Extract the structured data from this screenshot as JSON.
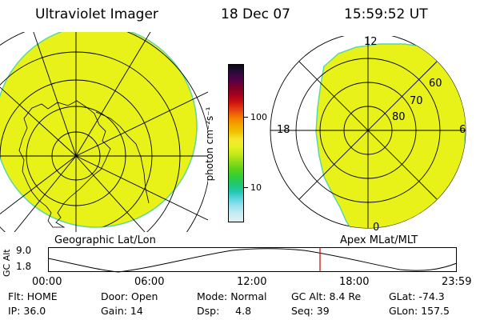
{
  "header": {
    "instrument": "Ultraviolet Imager",
    "date": "18 Dec 07",
    "time": "15:59:52 UT"
  },
  "colors": {
    "image_fill": "#e8f219",
    "image_edge": "#5dd6a0",
    "grid_line": "#000000",
    "time_marker": "#cc0000"
  },
  "left_map": {
    "label": "Geographic Lat/Lon"
  },
  "right_map": {
    "label": "Apex MLat/MLT",
    "mlt_labels": [
      "12",
      "18",
      "6",
      "0"
    ],
    "lat_labels": [
      "60",
      "70",
      "80"
    ]
  },
  "colorbar": {
    "unit_label": "photon cm⁻²s⁻¹",
    "tick_labels": [
      "100",
      "10"
    ],
    "palette": [
      "#0a0a14",
      "#2a0a3a",
      "#52004a",
      "#7a0028",
      "#a30020",
      "#cc1010",
      "#e84010",
      "#f07a00",
      "#f5a300",
      "#f0c200",
      "#f5e830",
      "#e6f020",
      "#c2e81a",
      "#8fdc1a",
      "#5ad21a",
      "#2ecf3a",
      "#20c870",
      "#22c8b0",
      "#5ed6e0",
      "#9ee2ef",
      "#c8ecf4",
      "#e4eef2"
    ]
  },
  "alt_plot": {
    "ylabel": "GC Alt",
    "y_ticks": [
      "9.0",
      "1.8"
    ],
    "x_ticks": [
      "00:00",
      "06:00",
      "12:00",
      "18:00",
      "23:59"
    ]
  },
  "info": {
    "flt": "Flt: HOME",
    "ip": "IP: 36.0",
    "door": "Door: Open",
    "gain": "Gain: 14",
    "mode": "Mode: Normal",
    "dsp": "Dsp:     4.8",
    "gc_alt": "GC Alt: 8.4 Re",
    "seq": "Seq: 39",
    "glat": "GLat: -74.3",
    "glon": "GLon: 157.5"
  }
}
